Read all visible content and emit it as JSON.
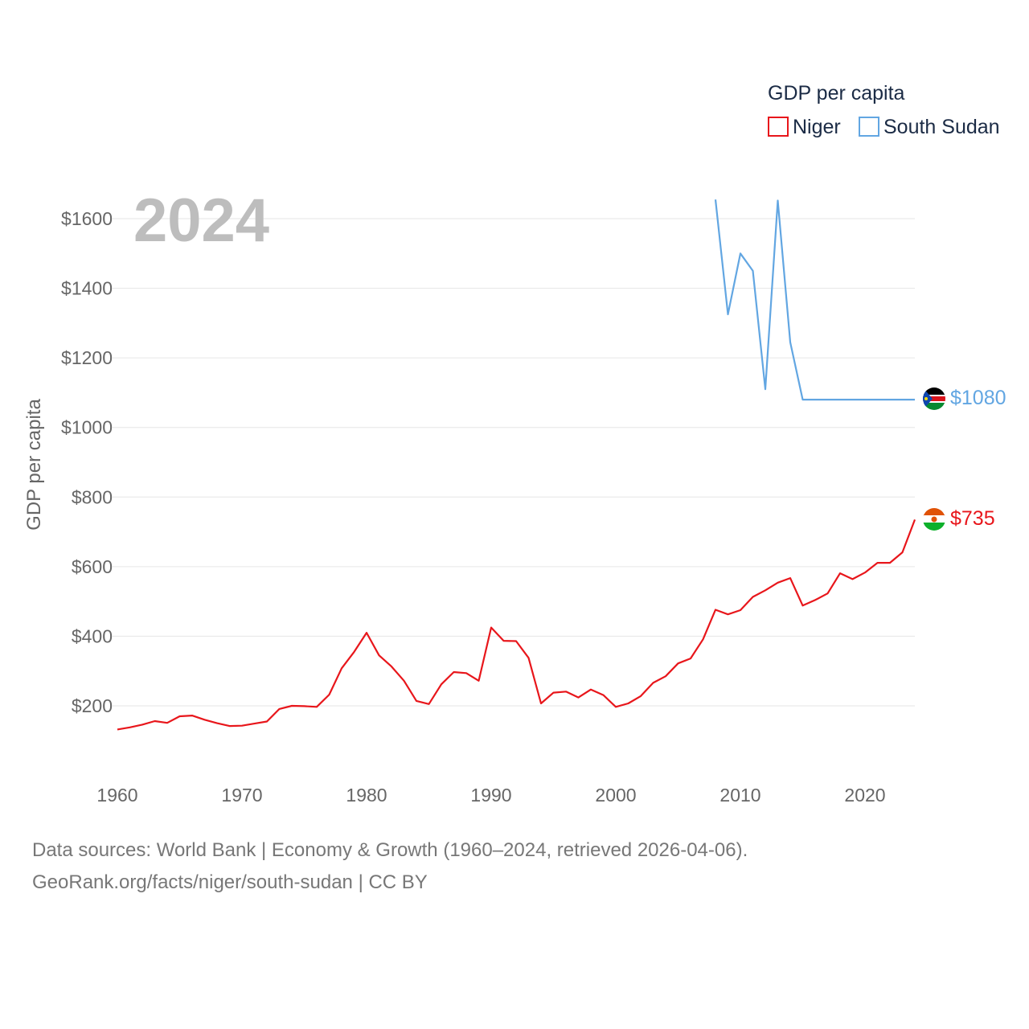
{
  "chart_data": {
    "type": "line",
    "year_label": "2024",
    "ylabel": "GDP per capita",
    "legend": {
      "title": "GDP per capita",
      "position": "top-right"
    },
    "xlim": [
      1960,
      2024
    ],
    "ylim": [
      80,
      1660
    ],
    "x_ticks": [
      1960,
      1970,
      1980,
      1990,
      2000,
      2010,
      2020
    ],
    "x_tick_labels": [
      "1960",
      "1970",
      "1980",
      "1990",
      "2000",
      "2010",
      "2020"
    ],
    "y_ticks": [
      200,
      400,
      600,
      800,
      1000,
      1200,
      1400,
      1600
    ],
    "y_tick_labels": [
      "$200",
      "$400",
      "$600",
      "$800",
      "$1000",
      "$1200",
      "$1400",
      "$1600"
    ],
    "gridlines": true,
    "series": [
      {
        "name": "Niger",
        "color": "#e8161b",
        "end_label": "$735",
        "flag_icon": "niger-flag-icon",
        "x": [
          1960,
          1961,
          1962,
          1963,
          1964,
          1965,
          1966,
          1967,
          1968,
          1969,
          1970,
          1971,
          1972,
          1973,
          1974,
          1975,
          1976,
          1977,
          1978,
          1979,
          1980,
          1981,
          1982,
          1983,
          1984,
          1985,
          1986,
          1987,
          1988,
          1989,
          1990,
          1991,
          1992,
          1993,
          1994,
          1995,
          1996,
          1997,
          1998,
          1999,
          2000,
          2001,
          2002,
          2003,
          2004,
          2005,
          2006,
          2007,
          2008,
          2009,
          2010,
          2011,
          2012,
          2013,
          2014,
          2015,
          2016,
          2017,
          2018,
          2019,
          2020,
          2021,
          2022,
          2023,
          2024
        ],
        "values": [
          132,
          138,
          146,
          156,
          151,
          170,
          172,
          160,
          150,
          142,
          143,
          149,
          155,
          191,
          200,
          199,
          197,
          232,
          308,
          355,
          410,
          345,
          313,
          272,
          214,
          205,
          262,
          297,
          294,
          272,
          425,
          387,
          386,
          338,
          207,
          238,
          241,
          224,
          247,
          231,
          197,
          207,
          228,
          266,
          285,
          322,
          336,
          391,
          476,
          463,
          475,
          513,
          532,
          554,
          567,
          488,
          504,
          523,
          581,
          564,
          583,
          611,
          611,
          641,
          735
        ]
      },
      {
        "name": "South Sudan",
        "color": "#62a6e2",
        "end_label": "$1080",
        "flag_icon": "south-sudan-flag-icon",
        "x": [
          2008,
          2009,
          2010,
          2011,
          2012,
          2013,
          2014,
          2015,
          2016,
          2017,
          2018,
          2019,
          2020,
          2021,
          2022,
          2023,
          2024
        ],
        "values": [
          1655,
          1325,
          1500,
          1450,
          1110,
          1652,
          1245,
          1080,
          1080,
          1080,
          1080,
          1080,
          1080,
          1080,
          1080,
          1080,
          1080
        ]
      }
    ]
  },
  "footer": {
    "sources": "Data sources: World Bank | Economy & Growth (1960–2024, retrieved 2026-04-06).",
    "credit": "GeoRank.org/facts/niger/south-sudan | CC BY"
  }
}
